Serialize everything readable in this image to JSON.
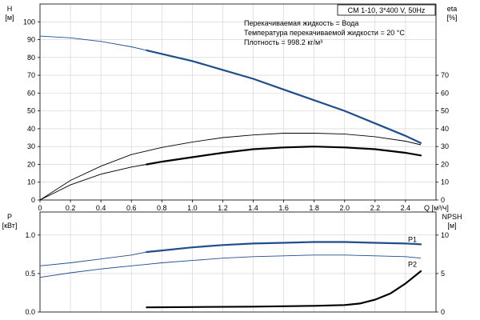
{
  "chart_data": [
    {
      "type": "line",
      "name": "upper",
      "title": "CM 1-10, 3*400 V, 50Hz",
      "info_lines": [
        "Перекачиваемая жидкость = Вода",
        "Температура перекачиваемой жидкости = 20 °C",
        "Плотность = 998.2 кг/м³"
      ],
      "xlabel": "Q [м³/ч]",
      "xlim": [
        0,
        2.6
      ],
      "x_ticks": [
        "0",
        "0.2",
        "0.4",
        "0.6",
        "0.8",
        "1.0",
        "1.2",
        "1.4",
        "1.6",
        "1.8",
        "2.0",
        "2.2",
        "2.4"
      ],
      "y_left": {
        "label_line1": "H",
        "label_line2": "[м]",
        "lim": [
          0,
          110
        ],
        "ticks": [
          "0",
          "10",
          "20",
          "30",
          "40",
          "50",
          "60",
          "70",
          "80",
          "90",
          "100"
        ]
      },
      "y_right": {
        "label_line1": "eta",
        "label_line2": "[%]",
        "lim": [
          0,
          110
        ],
        "ticks": [
          "0",
          "10",
          "20",
          "30",
          "40",
          "50",
          "60",
          "70"
        ]
      },
      "series": [
        {
          "axis": "left",
          "color": "#1f4e8c",
          "x": [
            0,
            0.2,
            0.4,
            0.6,
            0.7,
            0.8,
            1.0,
            1.2,
            1.4,
            1.6,
            1.8,
            2.0,
            2.2,
            2.4,
            2.5
          ],
          "y": [
            92,
            91,
            89,
            86,
            84,
            82,
            78,
            73,
            68,
            62,
            56,
            50,
            43,
            36,
            32
          ],
          "bold_from": 0.7
        },
        {
          "axis": "right",
          "color": "#000000",
          "x": [
            0,
            0.2,
            0.4,
            0.6,
            0.8,
            1.0,
            1.2,
            1.4,
            1.6,
            1.8,
            2.0,
            2.2,
            2.4,
            2.5
          ],
          "y": [
            0,
            11,
            19,
            25.5,
            29.5,
            32.5,
            35,
            36.5,
            37.5,
            37.5,
            37,
            35.5,
            33,
            31
          ],
          "bold_from": 99
        },
        {
          "axis": "right",
          "color": "#000000",
          "x": [
            0,
            0.2,
            0.4,
            0.6,
            0.7,
            0.8,
            1.0,
            1.2,
            1.4,
            1.6,
            1.8,
            2.0,
            2.2,
            2.4,
            2.5
          ],
          "y": [
            0,
            8.5,
            14.5,
            18.5,
            20,
            21.5,
            24,
            26.5,
            28.5,
            29.5,
            30,
            29.5,
            28.5,
            26.5,
            25
          ],
          "bold_from": 0.7
        }
      ]
    },
    {
      "type": "line",
      "name": "lower",
      "xlim": [
        0,
        2.6
      ],
      "y_left": {
        "label_line1": "P",
        "label_line2": "[кВт]",
        "lim": [
          0,
          1.3
        ],
        "ticks": [
          "0.0",
          "0.5",
          "1.0"
        ]
      },
      "y_right": {
        "label_line1": "NPSH",
        "label_line2": "[м]",
        "lim": [
          0,
          13
        ],
        "ticks": [
          "0",
          "5",
          "10"
        ]
      },
      "series": [
        {
          "axis": "left",
          "label": "P1",
          "color": "#1f4e8c",
          "x": [
            0,
            0.2,
            0.4,
            0.6,
            0.7,
            0.8,
            1.0,
            1.2,
            1.4,
            1.6,
            1.8,
            2.0,
            2.2,
            2.4,
            2.5
          ],
          "y": [
            0.6,
            0.64,
            0.69,
            0.74,
            0.78,
            0.8,
            0.84,
            0.87,
            0.89,
            0.9,
            0.91,
            0.91,
            0.9,
            0.89,
            0.88
          ],
          "bold_from": 0.7
        },
        {
          "axis": "left",
          "label": "P2",
          "color": "#1f4e8c",
          "x": [
            0,
            0.2,
            0.4,
            0.6,
            0.7,
            0.8,
            1.0,
            1.2,
            1.4,
            1.6,
            1.8,
            2.0,
            2.2,
            2.4,
            2.5
          ],
          "y": [
            0.45,
            0.51,
            0.56,
            0.6,
            0.62,
            0.64,
            0.67,
            0.7,
            0.72,
            0.73,
            0.74,
            0.74,
            0.73,
            0.72,
            0.7
          ],
          "bold_from": 99
        },
        {
          "axis": "right",
          "color": "#000000",
          "x": [
            0,
            0.6,
            0.7,
            1.0,
            1.4,
            1.8,
            2.0,
            2.1,
            2.2,
            2.3,
            2.4,
            2.5
          ],
          "y": [
            0.6,
            0.6,
            0.6,
            0.65,
            0.7,
            0.8,
            0.9,
            1.1,
            1.6,
            2.4,
            3.7,
            5.3
          ],
          "bold_from": 0.7,
          "hide_thin_before": 0.7
        }
      ]
    }
  ]
}
